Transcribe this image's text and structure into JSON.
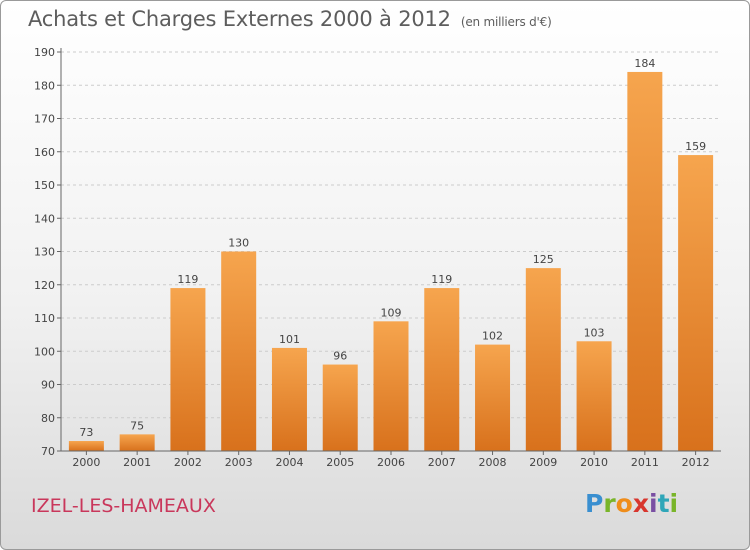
{
  "header": {
    "title": "Achats et Charges Externes 2000 à 2012",
    "subtitle": "(en milliers d'€)"
  },
  "footer": {
    "commune": "IZEL-LES-HAMEAUX",
    "logo_text": "Proxiti"
  },
  "colors": {
    "bar_light": "#f6a54e",
    "bar_dark": "#d8711c",
    "grid": "#cccccc",
    "commune": "#c9375b"
  },
  "chart_data": {
    "type": "bar",
    "title": "Achats et Charges Externes 2000 à 2012",
    "subtitle": "(en milliers d'€)",
    "xlabel": "",
    "ylabel": "",
    "categories": [
      "2000",
      "2001",
      "2002",
      "2003",
      "2004",
      "2005",
      "2006",
      "2007",
      "2008",
      "2009",
      "2010",
      "2011",
      "2012"
    ],
    "values": [
      73,
      75,
      119,
      130,
      101,
      96,
      109,
      119,
      102,
      125,
      103,
      184,
      159
    ],
    "ylim": [
      70,
      190
    ],
    "yticks": [
      70,
      80,
      90,
      100,
      110,
      120,
      130,
      140,
      150,
      160,
      170,
      180,
      190
    ],
    "grid": true,
    "data_labels": true
  }
}
